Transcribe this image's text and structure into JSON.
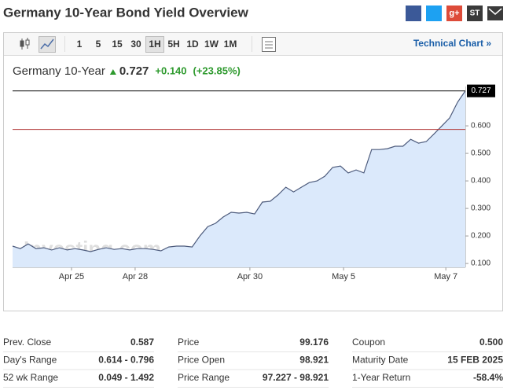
{
  "header": {
    "title": "Germany 10-Year Bond Yield Overview",
    "share": [
      "g+",
      "ST"
    ]
  },
  "toolbar": {
    "periods": [
      "1",
      "5",
      "15",
      "30",
      "1H",
      "5H",
      "1D",
      "1W",
      "1M"
    ],
    "selected": 4,
    "link": "Technical Chart »"
  },
  "quote": {
    "name": "Germany 10-Year",
    "last": "0.727",
    "change": "+0.140",
    "change_pct": "(+23.85%)"
  },
  "chart_data": {
    "type": "line",
    "watermark": "Investing.com",
    "x": [
      0,
      1,
      2,
      3,
      4,
      5,
      6,
      7,
      8,
      9,
      10,
      11,
      12,
      13,
      14,
      15,
      16,
      17,
      18,
      19,
      20,
      21,
      22,
      23,
      24,
      25,
      26,
      27,
      28,
      29,
      30,
      31,
      32,
      33,
      34,
      35,
      36,
      37,
      38,
      39,
      40,
      41,
      42,
      43,
      44,
      45,
      46,
      47,
      48,
      49,
      50,
      51,
      52,
      53,
      54,
      55,
      56,
      57,
      58
    ],
    "values": [
      0.163,
      0.154,
      0.171,
      0.154,
      0.157,
      0.149,
      0.157,
      0.149,
      0.154,
      0.149,
      0.143,
      0.151,
      0.157,
      0.151,
      0.154,
      0.149,
      0.154,
      0.154,
      0.151,
      0.146,
      0.16,
      0.163,
      0.163,
      0.16,
      0.2,
      0.234,
      0.246,
      0.269,
      0.286,
      0.283,
      0.286,
      0.28,
      0.323,
      0.326,
      0.349,
      0.377,
      0.36,
      0.377,
      0.394,
      0.4,
      0.417,
      0.449,
      0.454,
      0.429,
      0.44,
      0.429,
      0.514,
      0.514,
      0.517,
      0.526,
      0.526,
      0.551,
      0.537,
      0.543,
      0.571,
      0.6,
      0.629,
      0.686,
      0.727
    ],
    "color": "#4d5b7c",
    "fill_color": "#dbe9fb",
    "xlim": [
      0,
      58
    ],
    "xticks": [
      {
        "value": 7.55,
        "label": "Apr 25"
      },
      {
        "value": 15.7,
        "label": "Apr 28"
      },
      {
        "value": 30.4,
        "label": "Apr 30"
      },
      {
        "value": 42.4,
        "label": "May 5"
      },
      {
        "value": 55.5,
        "label": "May 7"
      }
    ],
    "ylim": [
      0.086,
      0.743
    ],
    "yticks": [
      {
        "value": 0.1,
        "label": "0.100"
      },
      {
        "value": 0.2,
        "label": "0.200"
      },
      {
        "value": 0.3,
        "label": "0.300"
      },
      {
        "value": 0.4,
        "label": "0.400"
      },
      {
        "value": 0.5,
        "label": "0.500"
      },
      {
        "value": 0.6,
        "label": "0.600"
      }
    ],
    "reference_lines": [
      {
        "value": 0.727,
        "color": "#000000",
        "labeled": true
      },
      {
        "value": 0.587,
        "color": "#b33a3a",
        "labeled": false
      }
    ]
  },
  "stats": {
    "columns": [
      [
        [
          "Prev. Close",
          "0.587"
        ],
        [
          "Day's Range",
          "0.614 - 0.796"
        ],
        [
          "52 wk Range",
          "0.049 - 1.492"
        ]
      ],
      [
        [
          "Price",
          "99.176"
        ],
        [
          "Price Open",
          "98.921"
        ],
        [
          "Price Range",
          "97.227 - 98.921"
        ]
      ],
      [
        [
          "Coupon",
          "0.500"
        ],
        [
          "Maturity Date",
          "15 FEB 2025"
        ],
        [
          "1-Year Return",
          "-58.4%"
        ]
      ]
    ]
  }
}
